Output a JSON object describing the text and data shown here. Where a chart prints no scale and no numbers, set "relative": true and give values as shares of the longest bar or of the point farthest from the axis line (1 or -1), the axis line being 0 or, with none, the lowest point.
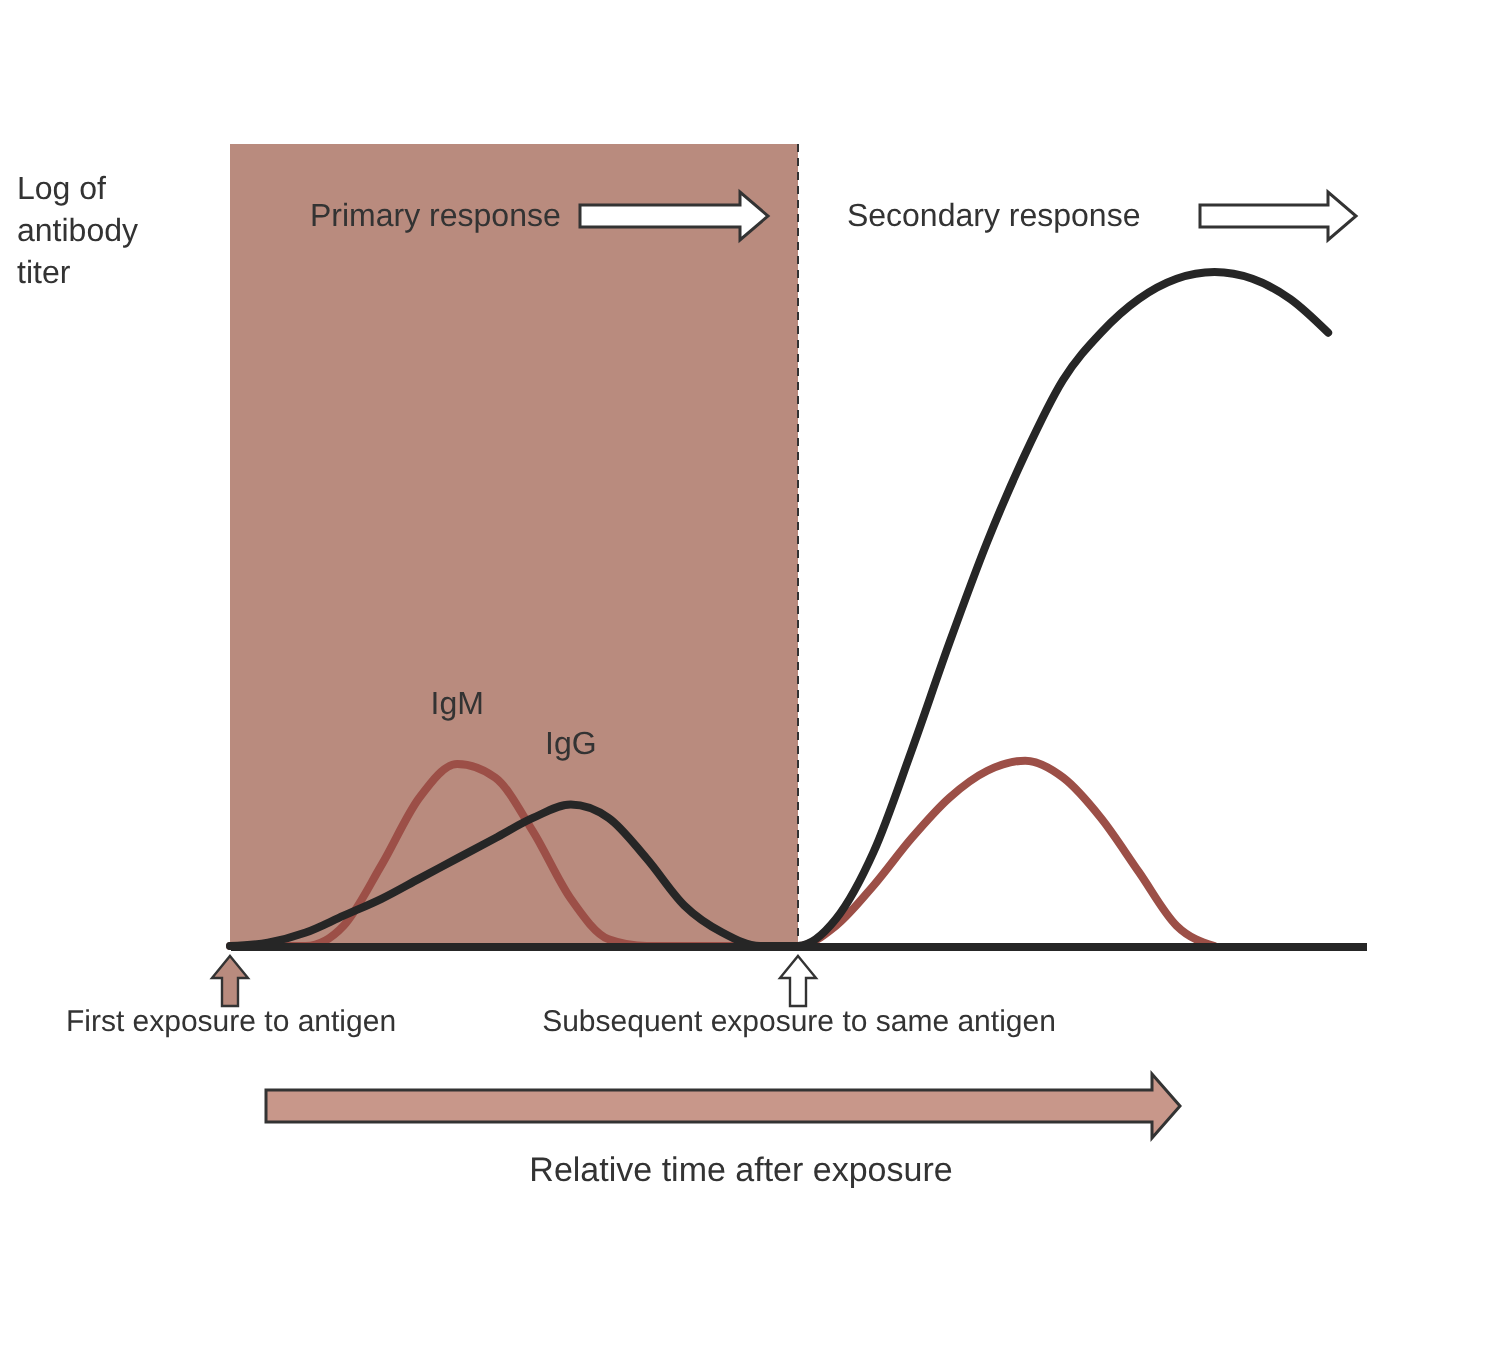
{
  "chart_data": {
    "type": "line",
    "relative": true,
    "xlabel": "Relative time after exposure",
    "ylabel": "Log of antibody titer",
    "categories": [
      "First exposure to antigen",
      null,
      null,
      null,
      null,
      null,
      null,
      null,
      null,
      null,
      null,
      null,
      null,
      null,
      null,
      "Subsequent exposure to same antigen",
      null,
      null,
      null,
      null,
      null,
      null,
      null,
      null,
      null,
      null,
      null,
      null,
      null,
      null,
      null
    ],
    "series": [
      {
        "name": "IgM",
        "color": "#9c4f47",
        "values": [
          0,
          0,
          0,
          0.03,
          0.12,
          0.22,
          0.27,
          0.25,
          0.17,
          0.07,
          0.01,
          0,
          0,
          0,
          0,
          0,
          0.03,
          0.09,
          0.16,
          0.22,
          0.26,
          0.275,
          0.25,
          0.19,
          0.11,
          0.03,
          0,
          null,
          null,
          null,
          null
        ]
      },
      {
        "name": "IgG",
        "color": "#262626",
        "values": [
          0,
          0.005,
          0.02,
          0.045,
          0.07,
          0.1,
          0.13,
          0.16,
          0.19,
          0.21,
          0.19,
          0.13,
          0.06,
          0.02,
          0,
          0,
          0.04,
          0.14,
          0.29,
          0.45,
          0.6,
          0.73,
          0.84,
          0.91,
          0.96,
          0.99,
          1.0,
          0.99,
          0.96,
          0.91,
          null
        ]
      }
    ],
    "bands": [
      {
        "axis": "x",
        "from": "First exposure to antigen",
        "to": "Subsequent exposure to same antigen",
        "label": "Primary response",
        "color": "#b98b7e"
      }
    ],
    "ref_lines": [
      {
        "axis": "x",
        "value": "Subsequent exposure to same antigen",
        "line_style": "dashed",
        "color": "#333333"
      }
    ],
    "annotations": [
      "Secondary response"
    ],
    "legend": false
  }
}
